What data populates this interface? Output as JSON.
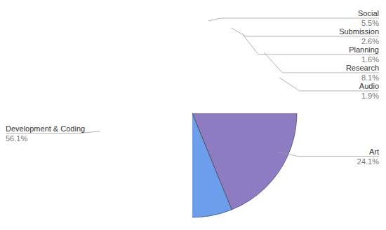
{
  "chart_data": {
    "type": "pie",
    "categories": [
      "Social",
      "Submission",
      "Planning",
      "Research",
      "Audio",
      "Art",
      "Development & Coding"
    ],
    "values": [
      5.5,
      2.6,
      1.6,
      8.1,
      1.9,
      24.1,
      56.1
    ],
    "value_labels": [
      "5.5%",
      "2.6%",
      "1.6%",
      "8.1%",
      "1.9%",
      "24.1%",
      "56.1%"
    ],
    "colors": [
      "#9fc5e8",
      "#93c47d",
      "#ffe599",
      "#f6b26b",
      "#e06666",
      "#8e7cc3",
      "#6d9eeb"
    ],
    "data_labels": true
  }
}
